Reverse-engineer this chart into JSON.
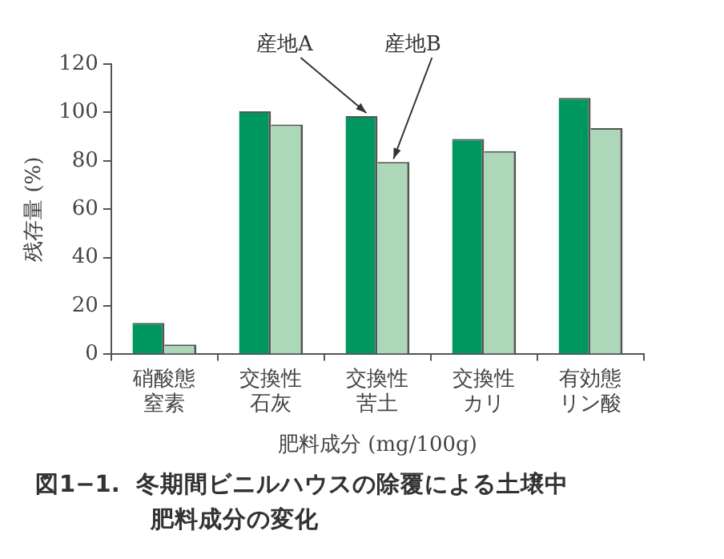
{
  "chart_data": {
    "type": "bar",
    "title": "図1−1.  冬期間ビニルハウスの除覆による土壌中肥料成分の変化",
    "xlabel": "肥料成分 (mg/100g)",
    "ylabel": "残存量 (%)",
    "categories": [
      "硝酸態窒素",
      "交換性石灰",
      "交換性苦土",
      "交換性カリ",
      "有効態リン酸"
    ],
    "series": [
      {
        "name": "産地A",
        "color": "#00965f",
        "values": [
          13,
          100.5,
          98.5,
          89,
          106
        ]
      },
      {
        "name": "産地B",
        "color": "#acd8b9",
        "values": [
          4,
          95,
          79.5,
          84,
          93.5
        ]
      }
    ],
    "ylim": [
      0,
      120
    ],
    "yticks": [
      0,
      20,
      40,
      60,
      80,
      100,
      120
    ],
    "grid": false,
    "legend": false
  }
}
